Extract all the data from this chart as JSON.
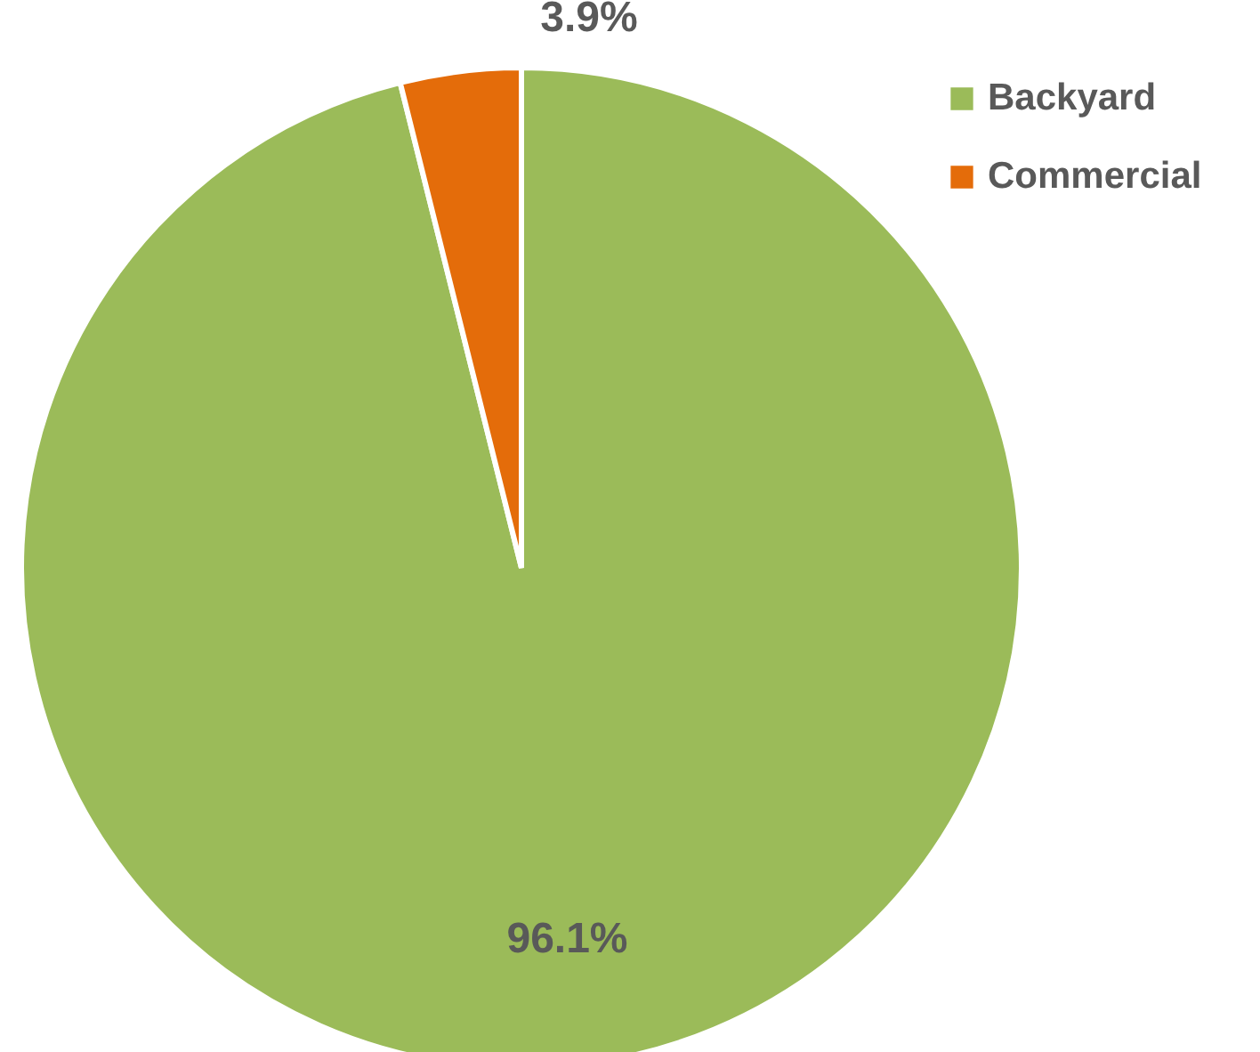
{
  "chart_data": {
    "type": "pie",
    "categories": [
      "Backyard",
      "Commercial"
    ],
    "values": [
      96.1,
      3.9
    ],
    "colors": [
      "#9bbb59",
      "#e46c0a"
    ],
    "value_labels": [
      "96.1%",
      "3.9%"
    ],
    "legend": "top right"
  }
}
